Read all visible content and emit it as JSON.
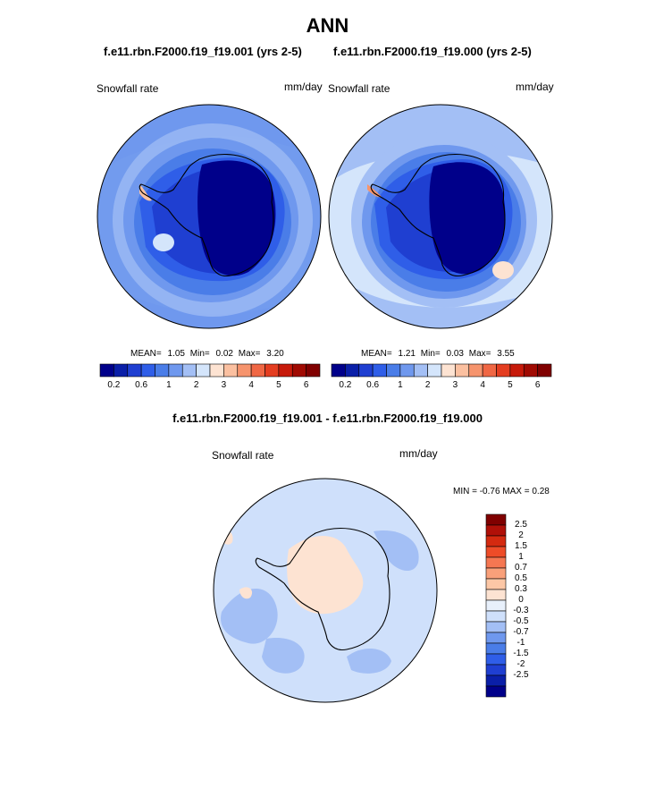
{
  "title": "ANN",
  "panels": [
    {
      "case": "f.e11.rbn.F2000.f19_f19.001 (yrs 2-5)",
      "variable": "Snowfall rate",
      "units": "mm/day",
      "stats": {
        "mean_label": "MEAN=",
        "mean": "1.05",
        "min_label": "Min=",
        "min": "0.02",
        "max_label": "Max=",
        "max": "3.20"
      }
    },
    {
      "case": "f.e11.rbn.F2000.f19_f19.000 (yrs 2-5)",
      "variable": "Snowfall rate",
      "units": "mm/day",
      "stats": {
        "mean_label": "MEAN=",
        "mean": "1.21",
        "min_label": "Min=",
        "min": "0.03",
        "max_label": "Max=",
        "max": "3.55"
      }
    }
  ],
  "colorbar": {
    "colors": [
      "#00008a",
      "#0a1fa8",
      "#1f3fd1",
      "#2f5ee8",
      "#4a7de8",
      "#6f98ee",
      "#a3bff5",
      "#d4e5fb",
      "#fde3d2",
      "#fbc0a0",
      "#f6946d",
      "#f06744",
      "#e43d20",
      "#c71a0a",
      "#a00a02",
      "#800000"
    ],
    "tick_labels": [
      "0.2",
      "0.6",
      "1",
      "2",
      "3",
      "4",
      "5",
      "6"
    ]
  },
  "diff": {
    "title": "f.e11.rbn.F2000.f19_f19.001 - f.e11.rbn.F2000.f19_f19.000",
    "variable": "Snowfall rate",
    "units": "mm/day",
    "minmax_text": "MIN =  -0.76 MAX =   0.28",
    "colorbar": {
      "colors": [
        "#800000",
        "#b01008",
        "#d42a10",
        "#ee4c28",
        "#f57752",
        "#f9a07a",
        "#fcc7a6",
        "#fde3d2",
        "#e8f0fb",
        "#cfe0fb",
        "#a3bff5",
        "#6f98ee",
        "#4a7de8",
        "#2f5ee8",
        "#1f3fd1",
        "#0a1fa8",
        "#00008a"
      ],
      "tick_labels": [
        "2.5",
        "2",
        "1.5",
        "1",
        "0.7",
        "0.5",
        "0.3",
        "0",
        "-0.3",
        "-0.5",
        "-0.7",
        "-1",
        "-1.5",
        "-2",
        "-2.5"
      ]
    }
  }
}
